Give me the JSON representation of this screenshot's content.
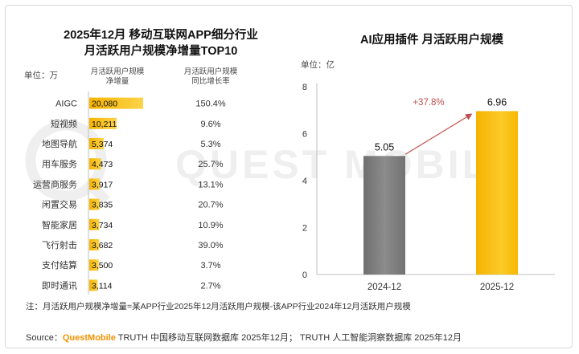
{
  "left_chart": {
    "title_line1": "2025年12月 移动互联网APP细分行业",
    "title_line2": "月活跃用户规模净增量TOP10",
    "unit_label": "单位：万",
    "col_header_bar": [
      "月活跃用户规模",
      "净增量"
    ],
    "col_header_growth": [
      "月活跃用户规模",
      "同比增长率"
    ],
    "note": "注：月活跃用户规模净增量=某APP行业2025年12月活跃用户规模-该APP行业2024年12月活跃用户规模"
  },
  "right_chart": {
    "title": "AI应用插件 月活跃用户规模",
    "unit_label": "单位：亿",
    "growth_label": "+37.8%"
  },
  "source": {
    "prefix": "Source：",
    "brand": "QuestMobile",
    "text": " TRUTH 中国移动互联网数据库 2025年12月； TRUTH 人工智能洞察数据库 2025年12月"
  },
  "watermark_text": "QUEST MOBILE",
  "colors": {
    "bar_gold": "#f6b400",
    "bar_gray": "#7f7f7f",
    "arrow_red": "#c0504d",
    "brand_orange": "#f39200"
  },
  "chart_data": [
    {
      "type": "bar",
      "orientation": "horizontal",
      "title": "2025年12月 移动互联网APP细分行业 月活跃用户规模净增量TOP10",
      "categories": [
        "AIGC",
        "短视频",
        "地图导航",
        "用车服务",
        "运营商服务",
        "闲置交易",
        "智能家居",
        "飞行射击",
        "支付结算",
        "即时通讯"
      ],
      "values": [
        20080,
        10211,
        5374,
        4473,
        3917,
        3835,
        3734,
        3682,
        3500,
        3114
      ],
      "value_labels": [
        "20,080",
        "10,211",
        "5,374",
        "4,473",
        "3,917",
        "3,835",
        "3,734",
        "3,682",
        "3,500",
        "3,114"
      ],
      "growth_rates": [
        "150.4%",
        "9.6%",
        "5.3%",
        "25.7%",
        "13.1%",
        "20.7%",
        "10.9%",
        "39.0%",
        "3.7%",
        "2.7%"
      ],
      "unit": "万"
    },
    {
      "type": "bar",
      "title": "AI应用插件 月活跃用户规模",
      "categories": [
        "2024-12",
        "2025-12"
      ],
      "values": [
        5.05,
        6.96
      ],
      "value_labels": [
        "5.05",
        "6.96"
      ],
      "yticks": [
        "0",
        "2",
        "4",
        "6",
        "8"
      ],
      "ylim": [
        0,
        8
      ],
      "unit": "亿",
      "annotation": "+37.8%"
    }
  ]
}
